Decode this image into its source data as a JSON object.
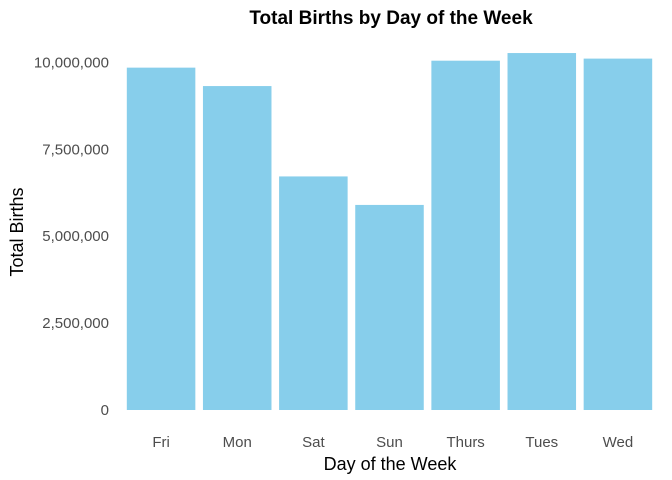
{
  "chart_data": {
    "type": "bar",
    "title": "Total Births by Day of the Week",
    "xlabel": "Day of the Week",
    "ylabel": "Total Births",
    "categories": [
      "Fri",
      "Mon",
      "Sat",
      "Sun",
      "Thurs",
      "Tues",
      "Wed"
    ],
    "values": [
      9850000,
      9320000,
      6720000,
      5900000,
      10050000,
      10270000,
      10110000
    ],
    "ylim": [
      0,
      10300000
    ],
    "yticks": [
      0,
      2500000,
      5000000,
      7500000,
      10000000
    ],
    "ytick_labels": [
      "0",
      "2,500,000",
      "5,000,000",
      "7,500,000",
      "10,000,000"
    ],
    "grid": false,
    "legend": "none",
    "bar_color": "#87CEEB"
  }
}
